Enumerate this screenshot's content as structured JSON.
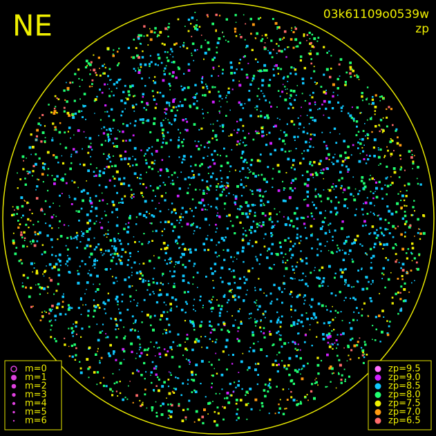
{
  "corner_label": "NE",
  "image_id": "03k61109o0539w",
  "color_key": "zp",
  "magnitude_legend": [
    "m=0",
    "m=1",
    "m=2",
    "m=3",
    "m=4",
    "m=5",
    "m=6"
  ],
  "zp_legend": [
    {
      "label": "zp=9.5",
      "color": "#ff70ff"
    },
    {
      "label": "zp=9.0",
      "color": "#d020ff"
    },
    {
      "label": "zp=8.5",
      "color": "#10c8ff"
    },
    {
      "label": "zp=8.0",
      "color": "#20ff70"
    },
    {
      "label": "zp=7.5",
      "color": "#f0f000"
    },
    {
      "label": "zp=7.0",
      "color": "#ff9a10"
    },
    {
      "label": "zp=6.5",
      "color": "#ff6a6a"
    }
  ]
}
